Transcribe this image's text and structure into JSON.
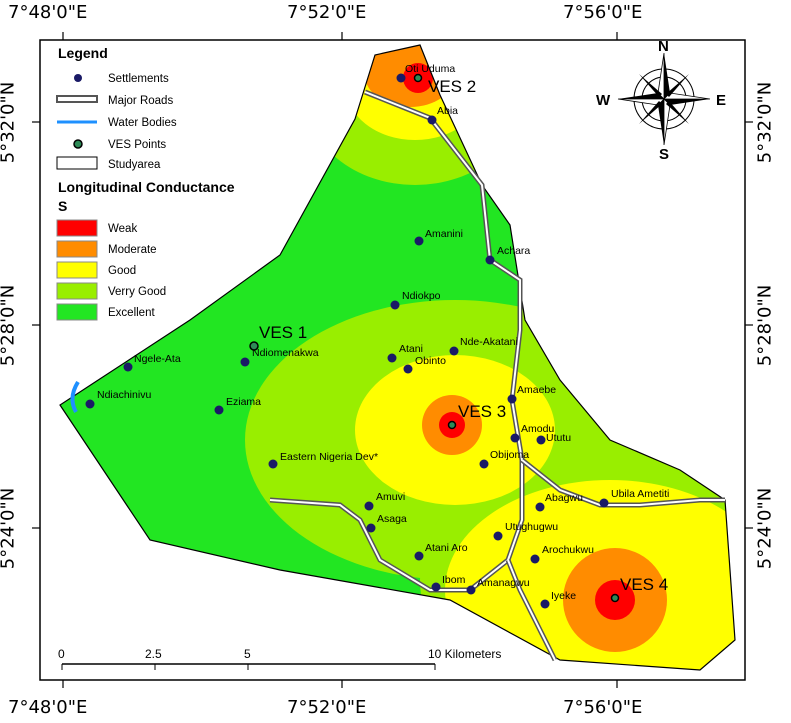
{
  "graticule": {
    "top": [
      "7°48'0\"E",
      "7°52'0\"E",
      "7°56'0\"E"
    ],
    "bottom": [
      "7°48'0\"E",
      "7°52'0\"E",
      "7°56'0\"E"
    ],
    "left": [
      "5°32'0\"N",
      "5°28'0\"N",
      "5°24'0\"N"
    ],
    "right": [
      "5°32'0\"N",
      "5°28'0\"N",
      "5°24'0\"N"
    ]
  },
  "legend": {
    "title": "Legend",
    "items": [
      {
        "label": "Settlements",
        "symbol": "settlement"
      },
      {
        "label": "Major Roads",
        "symbol": "road"
      },
      {
        "label": "Water Bodies",
        "symbol": "water"
      },
      {
        "label": "VES Points",
        "symbol": "ves"
      },
      {
        "label": "Studyarea",
        "symbol": "studyarea"
      }
    ],
    "conductance_title": "Longitudinal Conductance",
    "conductance_unit": "S",
    "classes": [
      {
        "label": "Weak",
        "color": "#ff0000"
      },
      {
        "label": "Moderate",
        "color": "#ff8c00"
      },
      {
        "label": "Good",
        "color": "#ffff00"
      },
      {
        "label": "Verry Good",
        "color": "#99ee00"
      },
      {
        "label": "Excellent",
        "color": "#22e622"
      }
    ]
  },
  "north_arrow": {
    "n": "N",
    "s": "S",
    "e": "E",
    "w": "W"
  },
  "scale_bar": {
    "ticks": [
      "0",
      "2.5",
      "5",
      "10 Kilometers"
    ]
  },
  "ves_labels": [
    "VES 1",
    "VES 2",
    "VES 3",
    "VES 4"
  ],
  "settlements": [
    "Oti Uduma",
    "Abia",
    "Amanini",
    "Achara",
    "Ndiokpo",
    "Nde-Akatani",
    "Atani",
    "Obinto",
    "Ndiomenakwa",
    "Ngele-Ata",
    "Ndiachinivu",
    "Eziama",
    "Amaebe",
    "Amodu",
    "Ututu",
    "Obijoma",
    "Eastern Nigeria Dev*",
    "Abagwu",
    "Ubila Ametiti",
    "Amuvi",
    "Asaga",
    "Utughugwu",
    "Arochukwu",
    "Atani Aro",
    "Ibom",
    "Amanagwu",
    "Iyeke"
  ],
  "colors": {
    "excellent": "#22e622",
    "very_good": "#99ee00",
    "good": "#ffff00",
    "moderate": "#ff8c00",
    "weak": "#ff0000",
    "settlement": "#1a1a66",
    "water": "#1e90ff"
  }
}
